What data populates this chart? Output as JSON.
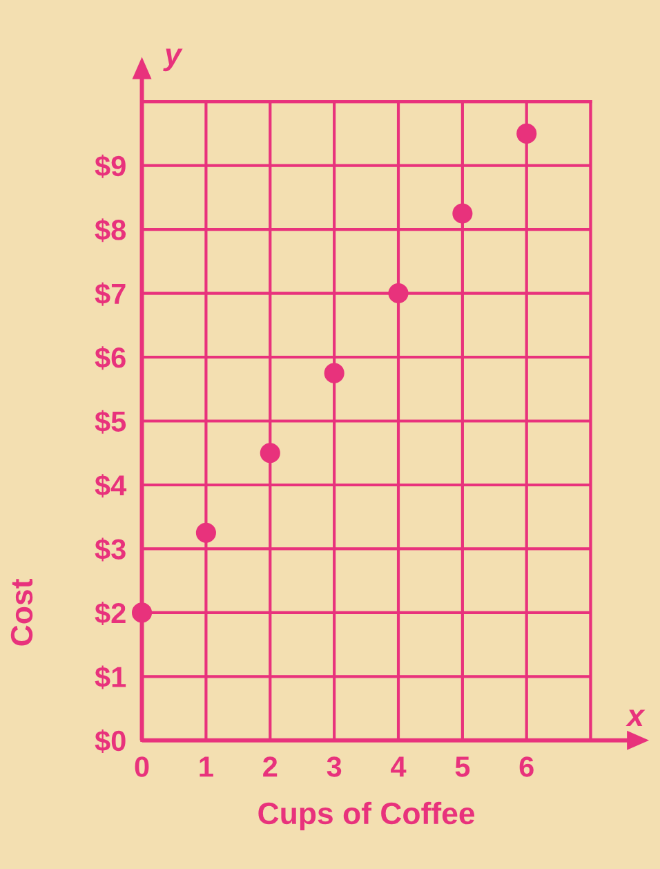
{
  "chart_data": {
    "type": "scatter",
    "xlabel": "Cups of Coffee",
    "ylabel": "Cost",
    "annotations": [
      "x",
      "y"
    ],
    "x": [
      0,
      1,
      2,
      3,
      4,
      5,
      6
    ],
    "series": [
      {
        "color": "#e8327c",
        "values": [
          2,
          3.25,
          4.5,
          5.75,
          7,
          8.25,
          9.5
        ]
      }
    ],
    "xlim": [
      0,
      7
    ],
    "ylim": [
      0,
      10
    ],
    "xticks": [
      0,
      1,
      2,
      3,
      4,
      5,
      6,
      {
        "value": 7,
        "label": null
      }
    ],
    "yticks": [
      {
        "value": 0,
        "label": "$0"
      },
      {
        "value": 1,
        "label": "$1"
      },
      {
        "value": 2,
        "label": "$2"
      },
      {
        "value": 3,
        "label": "$3"
      },
      {
        "value": 4,
        "label": "$4"
      },
      {
        "value": 5,
        "label": "$5"
      },
      {
        "value": 6,
        "label": "$6"
      },
      {
        "value": 7,
        "label": "$7"
      },
      {
        "value": 8,
        "label": "$8"
      },
      {
        "value": 9,
        "label": "$9"
      },
      {
        "value": 10,
        "label": null
      }
    ],
    "grid": true,
    "marker": "circle",
    "legend": false
  }
}
